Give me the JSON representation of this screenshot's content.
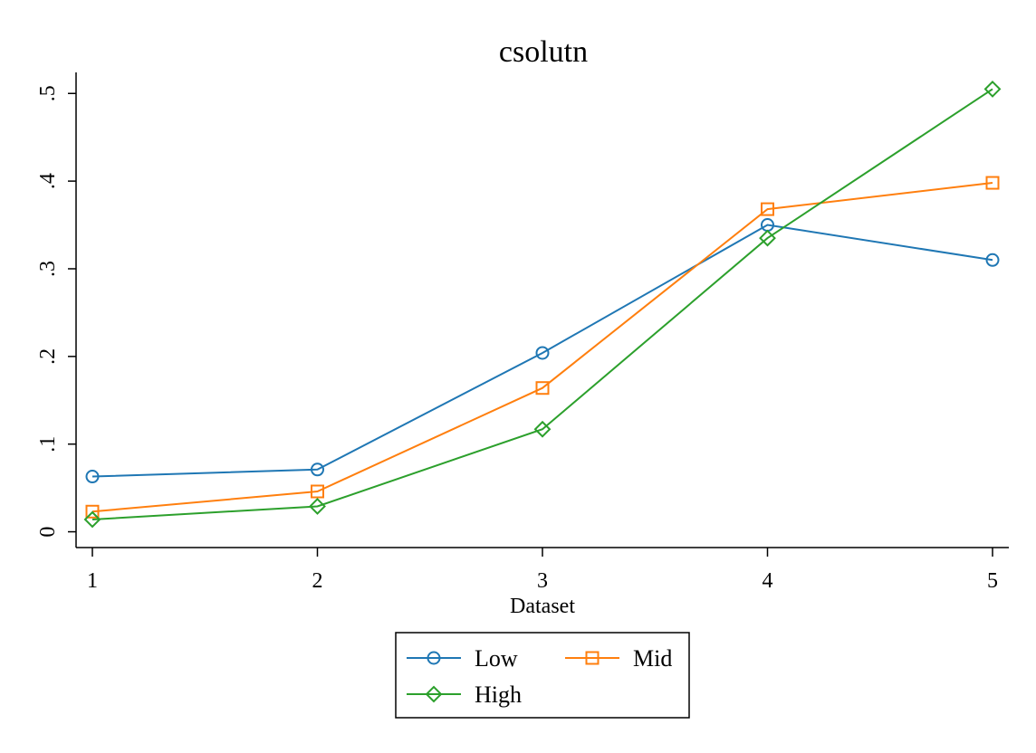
{
  "chart_data": {
    "type": "line",
    "title": "csolutn",
    "xlabel": "Dataset",
    "ylabel": "",
    "x": [
      1,
      2,
      3,
      4,
      5
    ],
    "x_tick_labels": [
      "1",
      "2",
      "3",
      "4",
      "5"
    ],
    "y_ticks": [
      0,
      0.1,
      0.2,
      0.3,
      0.4,
      0.5
    ],
    "y_tick_labels": [
      "0",
      ".1",
      ".2",
      ".3",
      ".4",
      ".5"
    ],
    "ylim": [
      -0.018,
      0.524
    ],
    "xlim": [
      1,
      5
    ],
    "grid": false,
    "legend_position": "bottom",
    "series": [
      {
        "name": "Low",
        "marker": "circle",
        "color": "#1f77b4",
        "values": [
          0.063,
          0.071,
          0.204,
          0.35,
          0.31
        ]
      },
      {
        "name": "Mid",
        "marker": "square",
        "color": "#ff7f0e",
        "values": [
          0.023,
          0.046,
          0.164,
          0.368,
          0.398
        ]
      },
      {
        "name": "High",
        "marker": "diamond",
        "color": "#2ca02c",
        "values": [
          0.014,
          0.029,
          0.117,
          0.335,
          0.505
        ]
      }
    ]
  }
}
